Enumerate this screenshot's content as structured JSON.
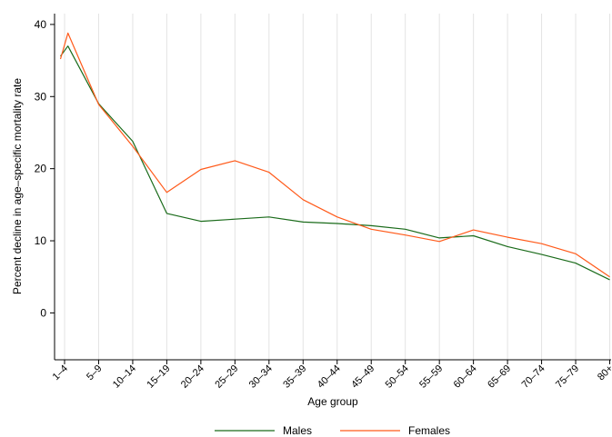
{
  "chart_data": {
    "type": "line",
    "title": "",
    "xlabel": "Age group",
    "ylabel": "Percent decline in age–specific mortality rate",
    "categories": [
      "1–4",
      "5–9",
      "10–14",
      "15–19",
      "20–24",
      "25–29",
      "30–34",
      "35–39",
      "40–44",
      "45–49",
      "50–54",
      "55–59",
      "60–64",
      "65–69",
      "70–74",
      "75–79",
      "80+"
    ],
    "yticks": [
      0,
      10,
      20,
      30,
      40
    ],
    "ylim": [
      -6.5,
      41.5
    ],
    "grid": "vertical",
    "legend": "bottom",
    "series": [
      {
        "name": "Males",
        "color": "#1a6b1a",
        "points": [
          [
            -0.12,
            35.6
          ],
          [
            0.1,
            37.0
          ],
          [
            1,
            29.0
          ],
          [
            2,
            23.8
          ],
          [
            3,
            13.8
          ],
          [
            4,
            12.7
          ],
          [
            5,
            13.0
          ],
          [
            6,
            13.3
          ],
          [
            7,
            12.6
          ],
          [
            8,
            12.4
          ],
          [
            9,
            12.1
          ],
          [
            10,
            11.6
          ],
          [
            11,
            10.4
          ],
          [
            12,
            10.7
          ],
          [
            13,
            9.2
          ],
          [
            14,
            8.1
          ],
          [
            15,
            6.9
          ],
          [
            16,
            4.6
          ]
        ]
      },
      {
        "name": "Females",
        "color": "#ff5a1a",
        "points": [
          [
            -0.12,
            35.2
          ],
          [
            0.1,
            38.8
          ],
          [
            1,
            28.9
          ],
          [
            2,
            23.1
          ],
          [
            3,
            16.7
          ],
          [
            4,
            19.9
          ],
          [
            5,
            21.1
          ],
          [
            6,
            19.5
          ],
          [
            7,
            15.7
          ],
          [
            8,
            13.3
          ],
          [
            9,
            11.6
          ],
          [
            10,
            10.8
          ],
          [
            11,
            9.9
          ],
          [
            12,
            11.5
          ],
          [
            13,
            10.5
          ],
          [
            14,
            9.6
          ],
          [
            15,
            8.2
          ],
          [
            16,
            5.0
          ]
        ]
      }
    ]
  }
}
